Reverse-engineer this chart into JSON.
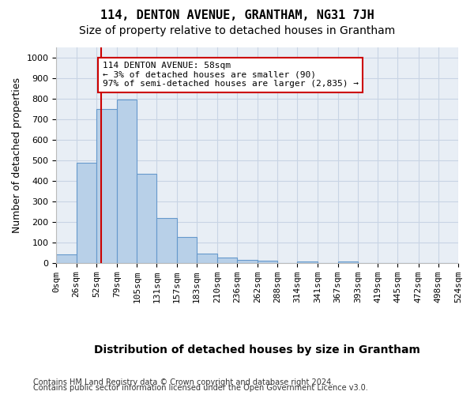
{
  "title": "114, DENTON AVENUE, GRANTHAM, NG31 7JH",
  "subtitle": "Size of property relative to detached houses in Grantham",
  "xlabel": "Distribution of detached houses by size in Grantham",
  "ylabel": "Number of detached properties",
  "bar_values": [
    42,
    490,
    750,
    795,
    435,
    220,
    128,
    48,
    28,
    15,
    10,
    0,
    8,
    0,
    8,
    0,
    0,
    0,
    0,
    0
  ],
  "bin_edges": [
    0,
    26,
    52,
    79,
    105,
    131,
    157,
    183,
    210,
    236,
    262,
    288,
    314,
    341,
    367,
    393,
    419,
    445,
    472,
    498,
    524
  ],
  "bar_color": "#b8d0e8",
  "bar_edge_color": "#6699cc",
  "annotation_text": "114 DENTON AVENUE: 58sqm\n← 3% of detached houses are smaller (90)\n97% of semi-detached houses are larger (2,835) →",
  "annotation_box_color": "#ffffff",
  "annotation_box_edge_color": "#cc0000",
  "vline_x": 58,
  "vline_color": "#cc0000",
  "ylim": [
    0,
    1050
  ],
  "yticks": [
    0,
    100,
    200,
    300,
    400,
    500,
    600,
    700,
    800,
    900,
    1000
  ],
  "x_tick_labels": [
    "0sqm",
    "26sqm",
    "52sqm",
    "79sqm",
    "105sqm",
    "131sqm",
    "157sqm",
    "183sqm",
    "210sqm",
    "236sqm",
    "262sqm",
    "288sqm",
    "314sqm",
    "341sqm",
    "367sqm",
    "393sqm",
    "419sqm",
    "445sqm",
    "472sqm",
    "498sqm",
    "524sqm"
  ],
  "footer_line1": "Contains HM Land Registry data © Crown copyright and database right 2024.",
  "footer_line2": "Contains public sector information licensed under the Open Government Licence v3.0.",
  "bg_color": "#ffffff",
  "ax_bg_color": "#e8eef5",
  "grid_color": "#c8d4e4",
  "title_fontsize": 11,
  "subtitle_fontsize": 10,
  "axis_label_fontsize": 9,
  "tick_fontsize": 8,
  "annotation_fontsize": 8,
  "footer_fontsize": 7
}
